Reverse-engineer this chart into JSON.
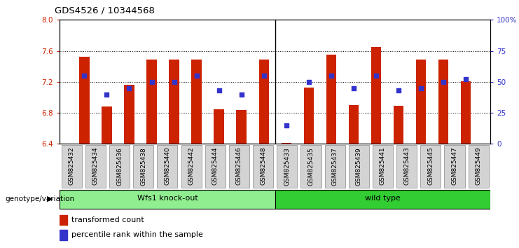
{
  "title": "GDS4526 / 10344568",
  "samples": [
    "GSM825432",
    "GSM825434",
    "GSM825436",
    "GSM825438",
    "GSM825440",
    "GSM825442",
    "GSM825444",
    "GSM825446",
    "GSM825448",
    "GSM825433",
    "GSM825435",
    "GSM825437",
    "GSM825439",
    "GSM825441",
    "GSM825443",
    "GSM825445",
    "GSM825447",
    "GSM825449"
  ],
  "bar_values": [
    7.52,
    6.88,
    7.16,
    7.49,
    7.49,
    7.49,
    6.85,
    6.84,
    7.49,
    6.41,
    7.13,
    7.55,
    6.9,
    7.65,
    6.89,
    7.49,
    7.49,
    7.21
  ],
  "dot_percentiles": [
    55,
    40,
    45,
    50,
    50,
    55,
    43,
    40,
    55,
    15,
    50,
    55,
    45,
    55,
    43,
    45,
    50,
    52
  ],
  "groups": [
    {
      "label": "Wfs1 knock-out",
      "start": 0,
      "end": 9,
      "color": "#90EE90"
    },
    {
      "label": "wild type",
      "start": 9,
      "end": 18,
      "color": "#32CD32"
    }
  ],
  "ylim_left": [
    6.4,
    8.0
  ],
  "ylim_right": [
    0,
    100
  ],
  "bar_color": "#CC2200",
  "dot_color": "#3333CC",
  "bar_bottom": 6.4,
  "label_transformed": "transformed count",
  "label_percentile": "percentile rank within the sample",
  "group_label": "genotype/variation",
  "yticks_left": [
    6.4,
    6.8,
    7.2,
    7.6,
    8.0
  ],
  "yticks_right_vals": [
    0,
    25,
    50,
    75,
    100
  ],
  "yticks_right_labels": [
    "0",
    "25",
    "50",
    "75",
    "100%"
  ]
}
